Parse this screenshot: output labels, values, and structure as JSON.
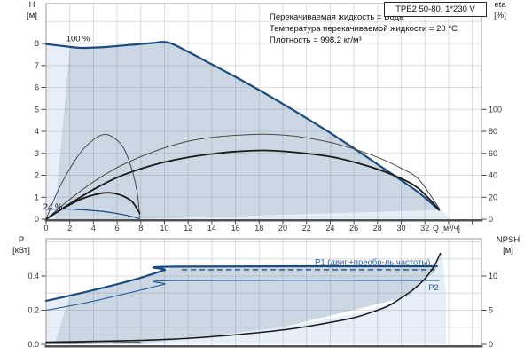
{
  "title_box": {
    "label": "TPE2 50-80, 1*230 V"
  },
  "info_lines": [
    "Перекачиваемая жидкость = Вода",
    "Температура перекачиваемой жидкости = 20 °C",
    "Плотность = 998.2 кг/м³"
  ],
  "axis_units": {
    "h": "H",
    "h_u": "[м]",
    "eta": "eta",
    "eta_u": "[%]",
    "p": "P",
    "p_u": "[кВт]",
    "npsh": "NPSH",
    "npsh_u": "[м]",
    "q": "Q [м³/ч]"
  },
  "colors": {
    "navy": "#1d4b7c",
    "blue": "#31619c",
    "black": "#1a1a1a",
    "gray_curve": "#4a4a4a",
    "label_blue": "#2d5c94",
    "fill_medium": "#ccd7e4",
    "fill_pale": "#e7eef7",
    "grid": "#6e7a8a",
    "border": "#999999",
    "axis_dark": "#4d4d4d",
    "tick_text": "#333333"
  },
  "chart_data": [
    {
      "type": "line",
      "name": "head-efficiency-chart",
      "title": "TPE2 50-80, 1*230 V",
      "xlabel": "Q [м³/ч]",
      "ylabel_left": "H [м]",
      "ylabel_right": "eta [%]",
      "xlim": [
        0,
        36.8
      ],
      "ylim_left": [
        0,
        9.82
      ],
      "ylim_right": [
        0,
        196
      ],
      "grid": true,
      "x_ticks": [
        [
          0,
          "0"
        ],
        [
          2,
          "2"
        ],
        [
          4,
          "4"
        ],
        [
          6,
          "6"
        ],
        [
          8,
          "8"
        ],
        [
          10,
          "10"
        ],
        [
          12,
          "12"
        ],
        [
          14,
          "14"
        ],
        [
          16,
          "16"
        ],
        [
          18,
          "18"
        ],
        [
          20,
          "20"
        ],
        [
          22,
          "22"
        ],
        [
          24,
          "24"
        ],
        [
          26,
          "26"
        ],
        [
          28,
          "28"
        ],
        [
          30,
          "30"
        ],
        [
          32,
          "32"
        ]
      ],
      "y_ticks_left": [
        [
          0,
          "0"
        ],
        [
          1,
          "1"
        ],
        [
          2,
          "2"
        ],
        [
          3,
          "3"
        ],
        [
          4,
          "4"
        ],
        [
          5,
          "5"
        ],
        [
          6,
          "6"
        ],
        [
          7,
          "7"
        ],
        [
          8,
          "8"
        ]
      ],
      "y_ticks_right": [
        [
          0,
          "0"
        ],
        [
          20,
          "20"
        ],
        [
          40,
          "40"
        ],
        [
          60,
          "60"
        ],
        [
          80,
          "80"
        ],
        [
          100,
          "100"
        ]
      ],
      "annotations": [
        {
          "text": "100 %",
          "q": 1.7,
          "v": 8.1,
          "color": "black",
          "size": 9.5
        },
        {
          "text": "24 %",
          "q": -0.25,
          "v": 0.44,
          "color": "black",
          "size": 9.5
        }
      ],
      "regions": [
        {
          "name": "envelope-pale-left",
          "color": "fill_pale",
          "points": [
            [
              0,
              0
            ],
            [
              0,
              7.97
            ],
            [
              2.0,
              7.85
            ],
            [
              0.7,
              0
            ]
          ]
        },
        {
          "name": "envelope-pale-bottom",
          "color": "fill_pale",
          "points": [
            [
              8,
              0
            ],
            [
              20,
              0.2
            ],
            [
              33.3,
              0.45
            ],
            [
              34.2,
              0
            ]
          ]
        },
        {
          "name": "operating-envelope",
          "color": "fill_medium",
          "points": [
            [
              0.7,
              0
            ],
            [
              2.0,
              7.85
            ],
            [
              3,
              7.8
            ],
            [
              5,
              7.84
            ],
            [
              7,
              7.93
            ],
            [
              9,
              8.02
            ],
            [
              10.3,
              8.05
            ],
            [
              12,
              7.62
            ],
            [
              14,
              7.05
            ],
            [
              16,
              6.48
            ],
            [
              18,
              5.88
            ],
            [
              20,
              5.25
            ],
            [
              22,
              4.6
            ],
            [
              24,
              3.93
            ],
            [
              26,
              3.23
            ],
            [
              28,
              2.5
            ],
            [
              30,
              1.77
            ],
            [
              31.5,
              1.2
            ],
            [
              33.2,
              0.42
            ],
            [
              20,
              0.2
            ],
            [
              8,
              0
            ]
          ]
        }
      ],
      "series": [
        {
          "name": "head-curve-100pct",
          "axis": "left",
          "color": "navy",
          "width": 2.2,
          "points": [
            [
              0,
              7.97
            ],
            [
              1.5,
              7.88
            ],
            [
              3,
              7.8
            ],
            [
              5,
              7.84
            ],
            [
              7,
              7.93
            ],
            [
              9,
              8.02
            ],
            [
              10.3,
              8.05
            ],
            [
              12,
              7.62
            ],
            [
              14,
              7.05
            ],
            [
              16,
              6.48
            ],
            [
              18,
              5.88
            ],
            [
              20,
              5.25
            ],
            [
              22,
              4.6
            ],
            [
              24,
              3.93
            ],
            [
              26,
              3.23
            ],
            [
              28,
              2.5
            ],
            [
              30,
              1.77
            ],
            [
              31.5,
              1.2
            ],
            [
              33.2,
              0.42
            ]
          ]
        },
        {
          "name": "head-curve-24pct",
          "axis": "left",
          "color": "navy",
          "width": 1.2,
          "points": [
            [
              0,
              0.45
            ],
            [
              1.5,
              0.47
            ],
            [
              3,
              0.43
            ],
            [
              5,
              0.34
            ],
            [
              6.5,
              0.21
            ],
            [
              7.9,
              0.03
            ]
          ]
        },
        {
          "name": "eff-pump-100pct",
          "axis": "right",
          "color": "gray_curve",
          "width": 1,
          "points": [
            [
              0,
              0
            ],
            [
              2,
              18
            ],
            [
              4,
              34
            ],
            [
              6,
              47
            ],
            [
              8,
              57
            ],
            [
              10,
              65
            ],
            [
              12,
              71
            ],
            [
              14,
              74.4
            ],
            [
              16,
              76.4
            ],
            [
              18.5,
              77.4
            ],
            [
              21,
              75.6
            ],
            [
              24,
              70
            ],
            [
              26,
              64
            ],
            [
              28,
              56.4
            ],
            [
              30,
              46.4
            ],
            [
              31.5,
              36
            ],
            [
              33.2,
              10
            ]
          ]
        },
        {
          "name": "eff-total-100pct",
          "axis": "right",
          "color": "black",
          "width": 1.8,
          "points": [
            [
              0,
              0
            ],
            [
              2,
              14
            ],
            [
              4,
              27
            ],
            [
              6,
              38
            ],
            [
              8,
              46
            ],
            [
              10,
              52
            ],
            [
              12,
              56.4
            ],
            [
              14,
              59.4
            ],
            [
              16,
              61.6
            ],
            [
              18.5,
              62.6
            ],
            [
              21,
              61
            ],
            [
              24,
              57
            ],
            [
              26,
              52
            ],
            [
              28,
              45.6
            ],
            [
              30,
              37
            ],
            [
              31.5,
              27.6
            ],
            [
              33.2,
              9
            ]
          ]
        },
        {
          "name": "eff-pump-24pct",
          "axis": "right",
          "color": "gray_curve",
          "width": 1,
          "points": [
            [
              0,
              0
            ],
            [
              1,
              26
            ],
            [
              2,
              46
            ],
            [
              3,
              62
            ],
            [
              4,
              72.4
            ],
            [
              4.8,
              77
            ],
            [
              5.6,
              75
            ],
            [
              6.5,
              65.6
            ],
            [
              7.2,
              47
            ],
            [
              7.7,
              24
            ],
            [
              7.9,
              2.4
            ]
          ]
        },
        {
          "name": "eff-total-24pct",
          "axis": "right",
          "color": "black",
          "width": 1.8,
          "points": [
            [
              0,
              0
            ],
            [
              1,
              7
            ],
            [
              2,
              13.2
            ],
            [
              3,
              18.4
            ],
            [
              4,
              22
            ],
            [
              5,
              24
            ],
            [
              5.8,
              23.4
            ],
            [
              6.6,
              20.6
            ],
            [
              7.3,
              15.6
            ],
            [
              7.9,
              5.6
            ]
          ]
        }
      ]
    },
    {
      "type": "line",
      "name": "power-npsh-chart",
      "xlabel": "",
      "ylabel_left": "P [кВт]",
      "ylabel_right": "NPSH [м]",
      "xlim": [
        0,
        36.8
      ],
      "ylim_left": [
        0,
        0.62
      ],
      "ylim_right": [
        0,
        15.5
      ],
      "grid": true,
      "x_ticks": [],
      "y_ticks_left": [
        [
          0,
          "0.0"
        ],
        [
          0.2,
          "0.2"
        ],
        [
          0.4,
          "0.4"
        ]
      ],
      "y_ticks_right": [
        [
          0,
          "0"
        ],
        [
          5,
          "5"
        ],
        [
          10,
          "10"
        ]
      ],
      "annotations": [
        {
          "text": "P1 (двиг.+преобр-ль частоты)",
          "q": 22.7,
          "v": 0.465,
          "color": "label_blue",
          "size": 9.5
        },
        {
          "text": "P2",
          "q": 32.3,
          "v": 0.317,
          "color": "label_blue",
          "size": 9.5
        }
      ],
      "regions": [
        {
          "name": "envelope-pale-left",
          "color": "fill_pale",
          "points": [
            [
              0,
              0
            ],
            [
              0,
              0.255
            ],
            [
              2.0,
              0.285
            ],
            [
              0.7,
              0
            ]
          ]
        },
        {
          "name": "envelope-pale-bottom",
          "color": "fill_pale",
          "points": [
            [
              8,
              0
            ],
            [
              20,
              0.1
            ],
            [
              27,
              0.19
            ],
            [
              30.6,
              0.28
            ],
            [
              32,
              0.38
            ],
            [
              33.4,
              0.545
            ],
            [
              33.8,
              0.3
            ],
            [
              33.8,
              0
            ]
          ]
        },
        {
          "name": "operating-envelope",
          "color": "fill_medium",
          "points": [
            [
              0.7,
              0
            ],
            [
              2.0,
              0.285
            ],
            [
              4,
              0.318
            ],
            [
              6,
              0.352
            ],
            [
              8,
              0.39
            ],
            [
              10,
              0.435
            ],
            [
              10.9,
              0.455
            ],
            [
              33,
              0.457
            ],
            [
              32.8,
              0.42
            ],
            [
              32,
              0.38
            ],
            [
              30.6,
              0.28
            ],
            [
              20,
              0.1
            ],
            [
              8,
              0
            ]
          ]
        }
      ],
      "series": [
        {
          "name": "p1-curve",
          "axis": "left",
          "color": "navy",
          "width": 2.2,
          "points": [
            [
              0,
              0.255
            ],
            [
              2,
              0.285
            ],
            [
              4,
              0.318
            ],
            [
              6,
              0.352
            ],
            [
              8,
              0.39
            ],
            [
              10,
              0.435
            ],
            [
              10.9,
              0.455
            ],
            [
              33,
              0.457
            ]
          ]
        },
        {
          "name": "p1-curve-dashed",
          "axis": "left",
          "color": "navy",
          "width": 1.4,
          "dash": "5 5",
          "points": [
            [
              11.5,
              0.437
            ],
            [
              32.8,
              0.437
            ]
          ]
        },
        {
          "name": "p2-curve",
          "axis": "left",
          "color": "blue",
          "width": 1.2,
          "points": [
            [
              0,
              0.2
            ],
            [
              2,
              0.225
            ],
            [
              4,
              0.253
            ],
            [
              6,
              0.285
            ],
            [
              8,
              0.318
            ],
            [
              10,
              0.352
            ],
            [
              10.9,
              0.373
            ],
            [
              33.2,
              0.374
            ]
          ]
        },
        {
          "name": "p1-curve-24pct",
          "axis": "left",
          "color": "navy",
          "width": 1.4,
          "points": [
            [
              0,
              0.014
            ],
            [
              4,
              0.018
            ],
            [
              7.9,
              0.023
            ]
          ]
        },
        {
          "name": "p2-curve-24pct",
          "axis": "left",
          "color": "black",
          "width": 1,
          "points": [
            [
              0,
              0.005
            ],
            [
              4,
              0.008
            ],
            [
              7.9,
              0.012
            ]
          ]
        },
        {
          "name": "npsh-curve",
          "axis": "right",
          "color": "black",
          "width": 1.5,
          "points": [
            [
              0,
              0.28
            ],
            [
              4,
              0.4
            ],
            [
              8,
              0.58
            ],
            [
              12,
              0.88
            ],
            [
              16,
              1.4
            ],
            [
              20,
              2.1
            ],
            [
              23,
              2.9
            ],
            [
              26,
              3.9
            ],
            [
              28,
              5.0
            ],
            [
              29,
              5.7
            ],
            [
              30,
              6.8
            ],
            [
              31,
              8.0
            ],
            [
              32,
              9.6
            ],
            [
              32.8,
              11.5
            ],
            [
              33.3,
              13.3
            ]
          ]
        }
      ]
    }
  ]
}
